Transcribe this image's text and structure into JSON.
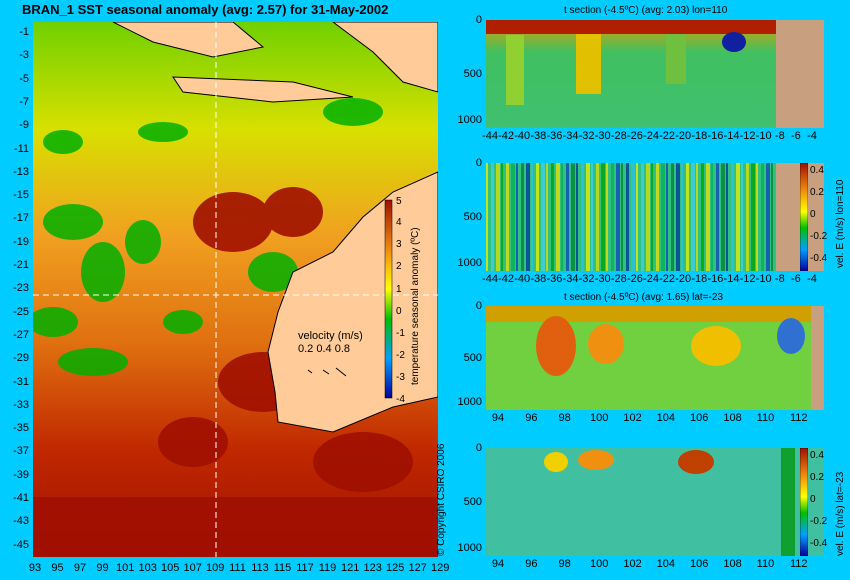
{
  "map": {
    "title": "BRAN_1 SST seasonal anomaly (avg: 2.57) for 31-May-2002",
    "lat_ticks": [
      "-1",
      "-3",
      "-5",
      "-7",
      "-9",
      "-11",
      "-13",
      "-15",
      "-17",
      "-19",
      "-21",
      "-23",
      "-25",
      "-27",
      "-29",
      "-31",
      "-33",
      "-35",
      "-37",
      "-39",
      "-41",
      "-43",
      "-45"
    ],
    "lon_ticks": [
      "93",
      "95",
      "97",
      "99",
      "101",
      "103",
      "105",
      "107",
      "109",
      "111",
      "113",
      "115",
      "117",
      "119",
      "121",
      "123",
      "125",
      "127",
      "129"
    ],
    "colorbar_ticks": [
      "5",
      "4",
      "3",
      "2",
      "1",
      "0",
      "-1",
      "-2",
      "-3",
      "-4"
    ],
    "colorbar_label": "temperature seasonal anomaly (ºC)",
    "velocity_label": "velocity (m/s)",
    "velocity_scale": "0.2 0.4 0.8",
    "copyright": "© Copyright CSIRO 2006",
    "colors": {
      "ocean_bg": "#00CCFF",
      "land": "#FFCC99",
      "hot": "#A01000",
      "warm": "#F08A10",
      "neutral": "#FFFF00",
      "cool": "#00C000"
    }
  },
  "panels": [
    {
      "title": "t section (-4.5ºC) (avg: 2.03) lon=110",
      "y_ticks": [
        "0",
        "500",
        "1000"
      ],
      "x_ticks": [
        "-44",
        "-42",
        "-40",
        "-38",
        "-36",
        "-34",
        "-32",
        "-30",
        "-28",
        "-26",
        "-24",
        "-22",
        "-20",
        "-18",
        "-16",
        "-14",
        "-12",
        "-10",
        "-8",
        "-6",
        "-4"
      ]
    },
    {
      "title": "",
      "y_ticks": [
        "0",
        "500",
        "1000"
      ],
      "x_ticks": [
        "-44",
        "-42",
        "-40",
        "-38",
        "-36",
        "-34",
        "-32",
        "-30",
        "-28",
        "-26",
        "-24",
        "-22",
        "-20",
        "-18",
        "-16",
        "-14",
        "-12",
        "-10",
        "-8",
        "-6",
        "-4"
      ],
      "cbar_ticks": [
        "0.4",
        "0.2",
        "0",
        "-0.2",
        "-0.4"
      ],
      "cbar_label": "vel. E (m/s) lon=110"
    },
    {
      "title": "t section (-4.5ºC) (avg: 1.65) lat=-23",
      "y_ticks": [
        "0",
        "500",
        "1000"
      ],
      "x_ticks": [
        "94",
        "96",
        "98",
        "100",
        "102",
        "104",
        "106",
        "108",
        "110",
        "112"
      ]
    },
    {
      "title": "",
      "y_ticks": [
        "0",
        "500",
        "1000"
      ],
      "x_ticks": [
        "94",
        "96",
        "98",
        "100",
        "102",
        "104",
        "106",
        "108",
        "110",
        "112"
      ],
      "cbar_ticks": [
        "0.4",
        "0.2",
        "0",
        "-0.2",
        "-0.4"
      ],
      "cbar_label": "vel. E (m/s) lat=-23"
    }
  ]
}
